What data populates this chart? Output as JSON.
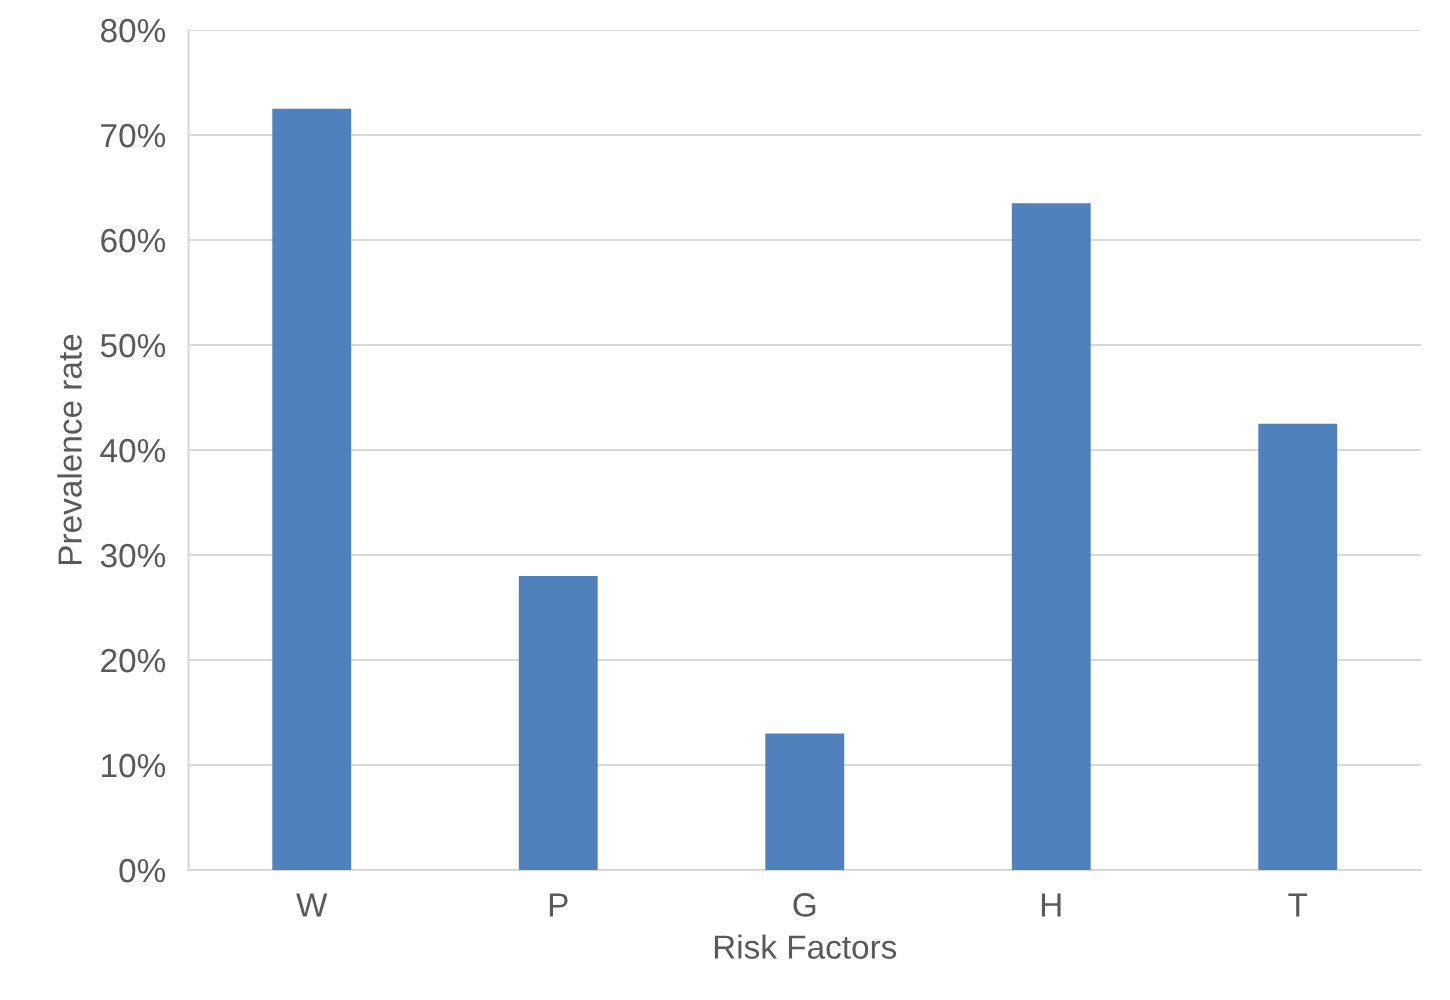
{
  "chart_data": {
    "type": "bar",
    "xlabel": "Risk Factors",
    "ylabel": "Prevalence rate",
    "categories": [
      "W",
      "P",
      "G",
      "H",
      "T"
    ],
    "values": [
      72.5,
      28,
      13,
      63.5,
      42.5
    ],
    "color": "#4f81bd",
    "ylim": [
      0,
      80
    ],
    "yticks": [
      {
        "value": 0,
        "label": "0%"
      },
      {
        "value": 10,
        "label": "10%"
      },
      {
        "value": 20,
        "label": "20%"
      },
      {
        "value": 30,
        "label": "30%"
      },
      {
        "value": 40,
        "label": "40%"
      },
      {
        "value": 50,
        "label": "50%"
      },
      {
        "value": 60,
        "label": "60%"
      },
      {
        "value": 70,
        "label": "70%"
      },
      {
        "value": 80,
        "label": "80%"
      }
    ],
    "grid": "y"
  }
}
